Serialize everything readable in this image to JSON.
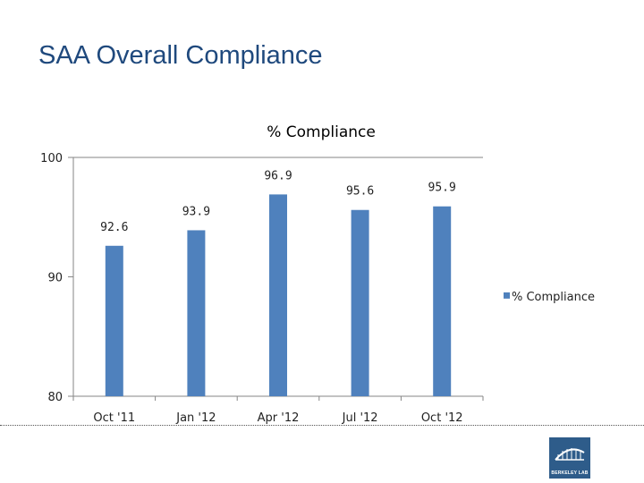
{
  "slide": {
    "title": "SAA Overall Compliance",
    "logo_text": "BERKELEY LAB"
  },
  "colors": {
    "title": "#1f497d",
    "bar": "#4f81bd",
    "logo_bg": "#2e5c8a"
  },
  "chart_data": {
    "type": "bar",
    "title": "% Compliance",
    "categories": [
      "Oct '11",
      "Jan '12",
      "Apr '12",
      "Jul '12",
      "Oct '12"
    ],
    "series": [
      {
        "name": "% Compliance",
        "values": [
          92.6,
          93.9,
          96.9,
          95.6,
          95.9
        ],
        "labels": [
          "92.6",
          "93.9",
          "96.9",
          "95.6",
          "95.9"
        ]
      }
    ],
    "y_ticks": [
      "100",
      "90",
      "80"
    ],
    "ylim": [
      80,
      100
    ],
    "xlabel": "",
    "ylabel": "",
    "grid": false,
    "legend": "right"
  }
}
